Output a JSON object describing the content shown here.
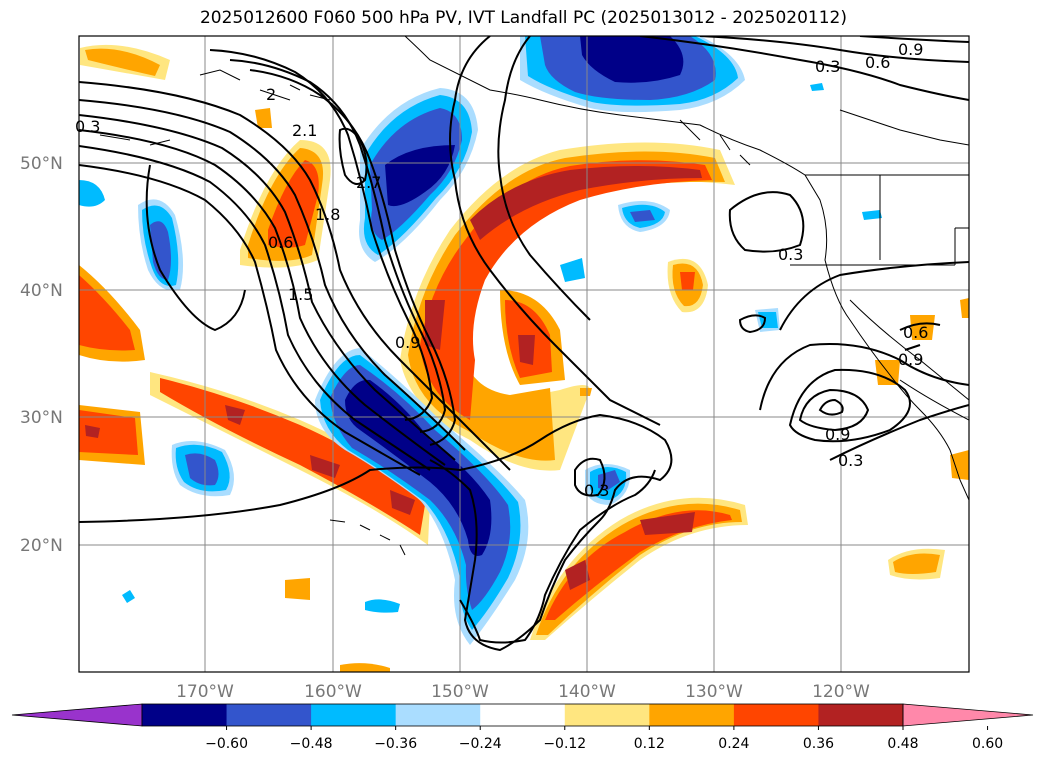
{
  "title": "2025012600 F060 500 hPa PV, IVT Landfall PC (2025013012 - 2025020112)",
  "lat_labels": [
    "50°N",
    "40°N",
    "30°N",
    "20°N"
  ],
  "lon_labels": [
    "170°W",
    "160°W",
    "150°W",
    "140°W",
    "130°W",
    "120°W"
  ],
  "contour_labels": [
    "0.3",
    "2",
    "2.1",
    "1.8",
    "0.6",
    "1.5",
    "2.7",
    "0.9",
    "0.3",
    "0.6",
    "0.9",
    "0.3",
    "0.9",
    "0.3",
    "0.6",
    "0.9",
    "0.3"
  ],
  "colorbar": {
    "colors": [
      "#9933cc",
      "#000088",
      "#3355cc",
      "#00bbff",
      "#aaddff",
      "#ffffff",
      "#ffe680",
      "#ffa500",
      "#ff4500",
      "#b22222",
      "#ff88aa"
    ],
    "tick_labels": [
      "-0.60",
      "-0.48",
      "-0.36",
      "-0.24",
      "-0.12",
      "0.12",
      "0.24",
      "0.36",
      "0.48",
      "0.60"
    ]
  },
  "colors": {
    "strong_pos": "#b22222",
    "pos": "#ff4500",
    "mid_pos": "#ffa500",
    "weak_pos": "#ffe680",
    "weak_neg": "#aaddff",
    "mid_neg": "#00bbff",
    "neg": "#3355cc",
    "strong_neg": "#000088"
  }
}
